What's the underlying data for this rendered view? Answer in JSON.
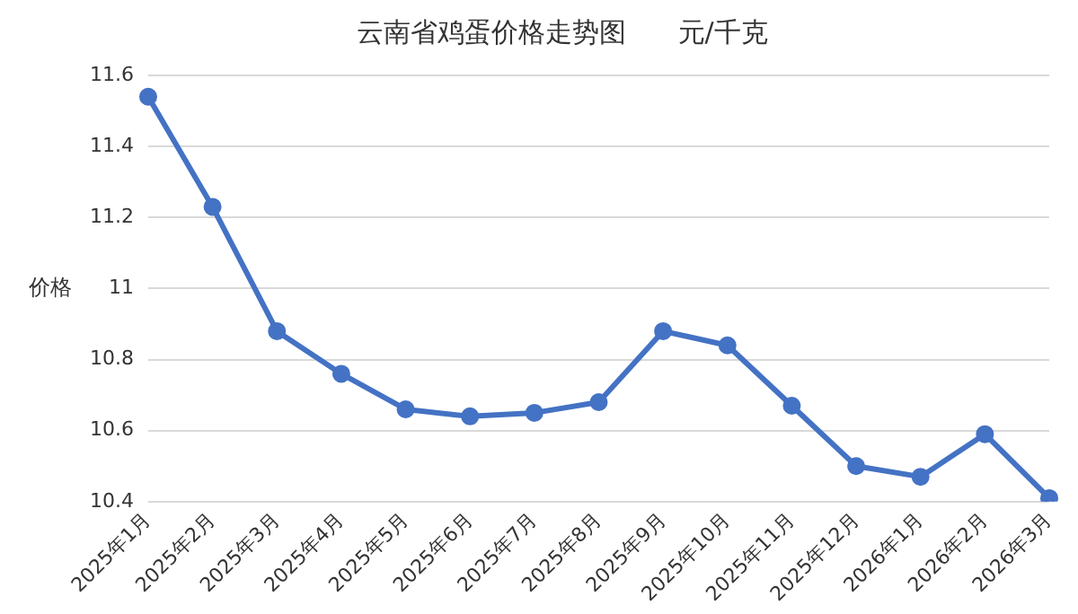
{
  "chart_data": {
    "type": "line",
    "title": "云南省鸡蛋价格走势图      元/千克",
    "ylabel": "价格",
    "categories": [
      "2025年1月",
      "2025年2月",
      "2025年3月",
      "2025年4月",
      "2025年5月",
      "2025年6月",
      "2025年7月",
      "2025年8月",
      "2025年9月",
      "2025年10月",
      "2025年11月",
      "2025年12月",
      "2026年1月",
      "2026年2月",
      "2026年3月"
    ],
    "series": [
      {
        "color": "#4472c4",
        "values": [
          11.54,
          11.23,
          10.88,
          10.76,
          10.66,
          10.64,
          10.65,
          10.68,
          10.88,
          10.84,
          10.67,
          10.5,
          10.47,
          10.59,
          10.41
        ]
      }
    ],
    "ylim": [
      10.4,
      11.6
    ],
    "yticks": [
      10.4,
      10.6,
      10.8,
      11,
      11.2,
      11.4,
      11.6
    ],
    "grid": "y",
    "legend": false,
    "marker": "circle",
    "line_style": "solid"
  }
}
